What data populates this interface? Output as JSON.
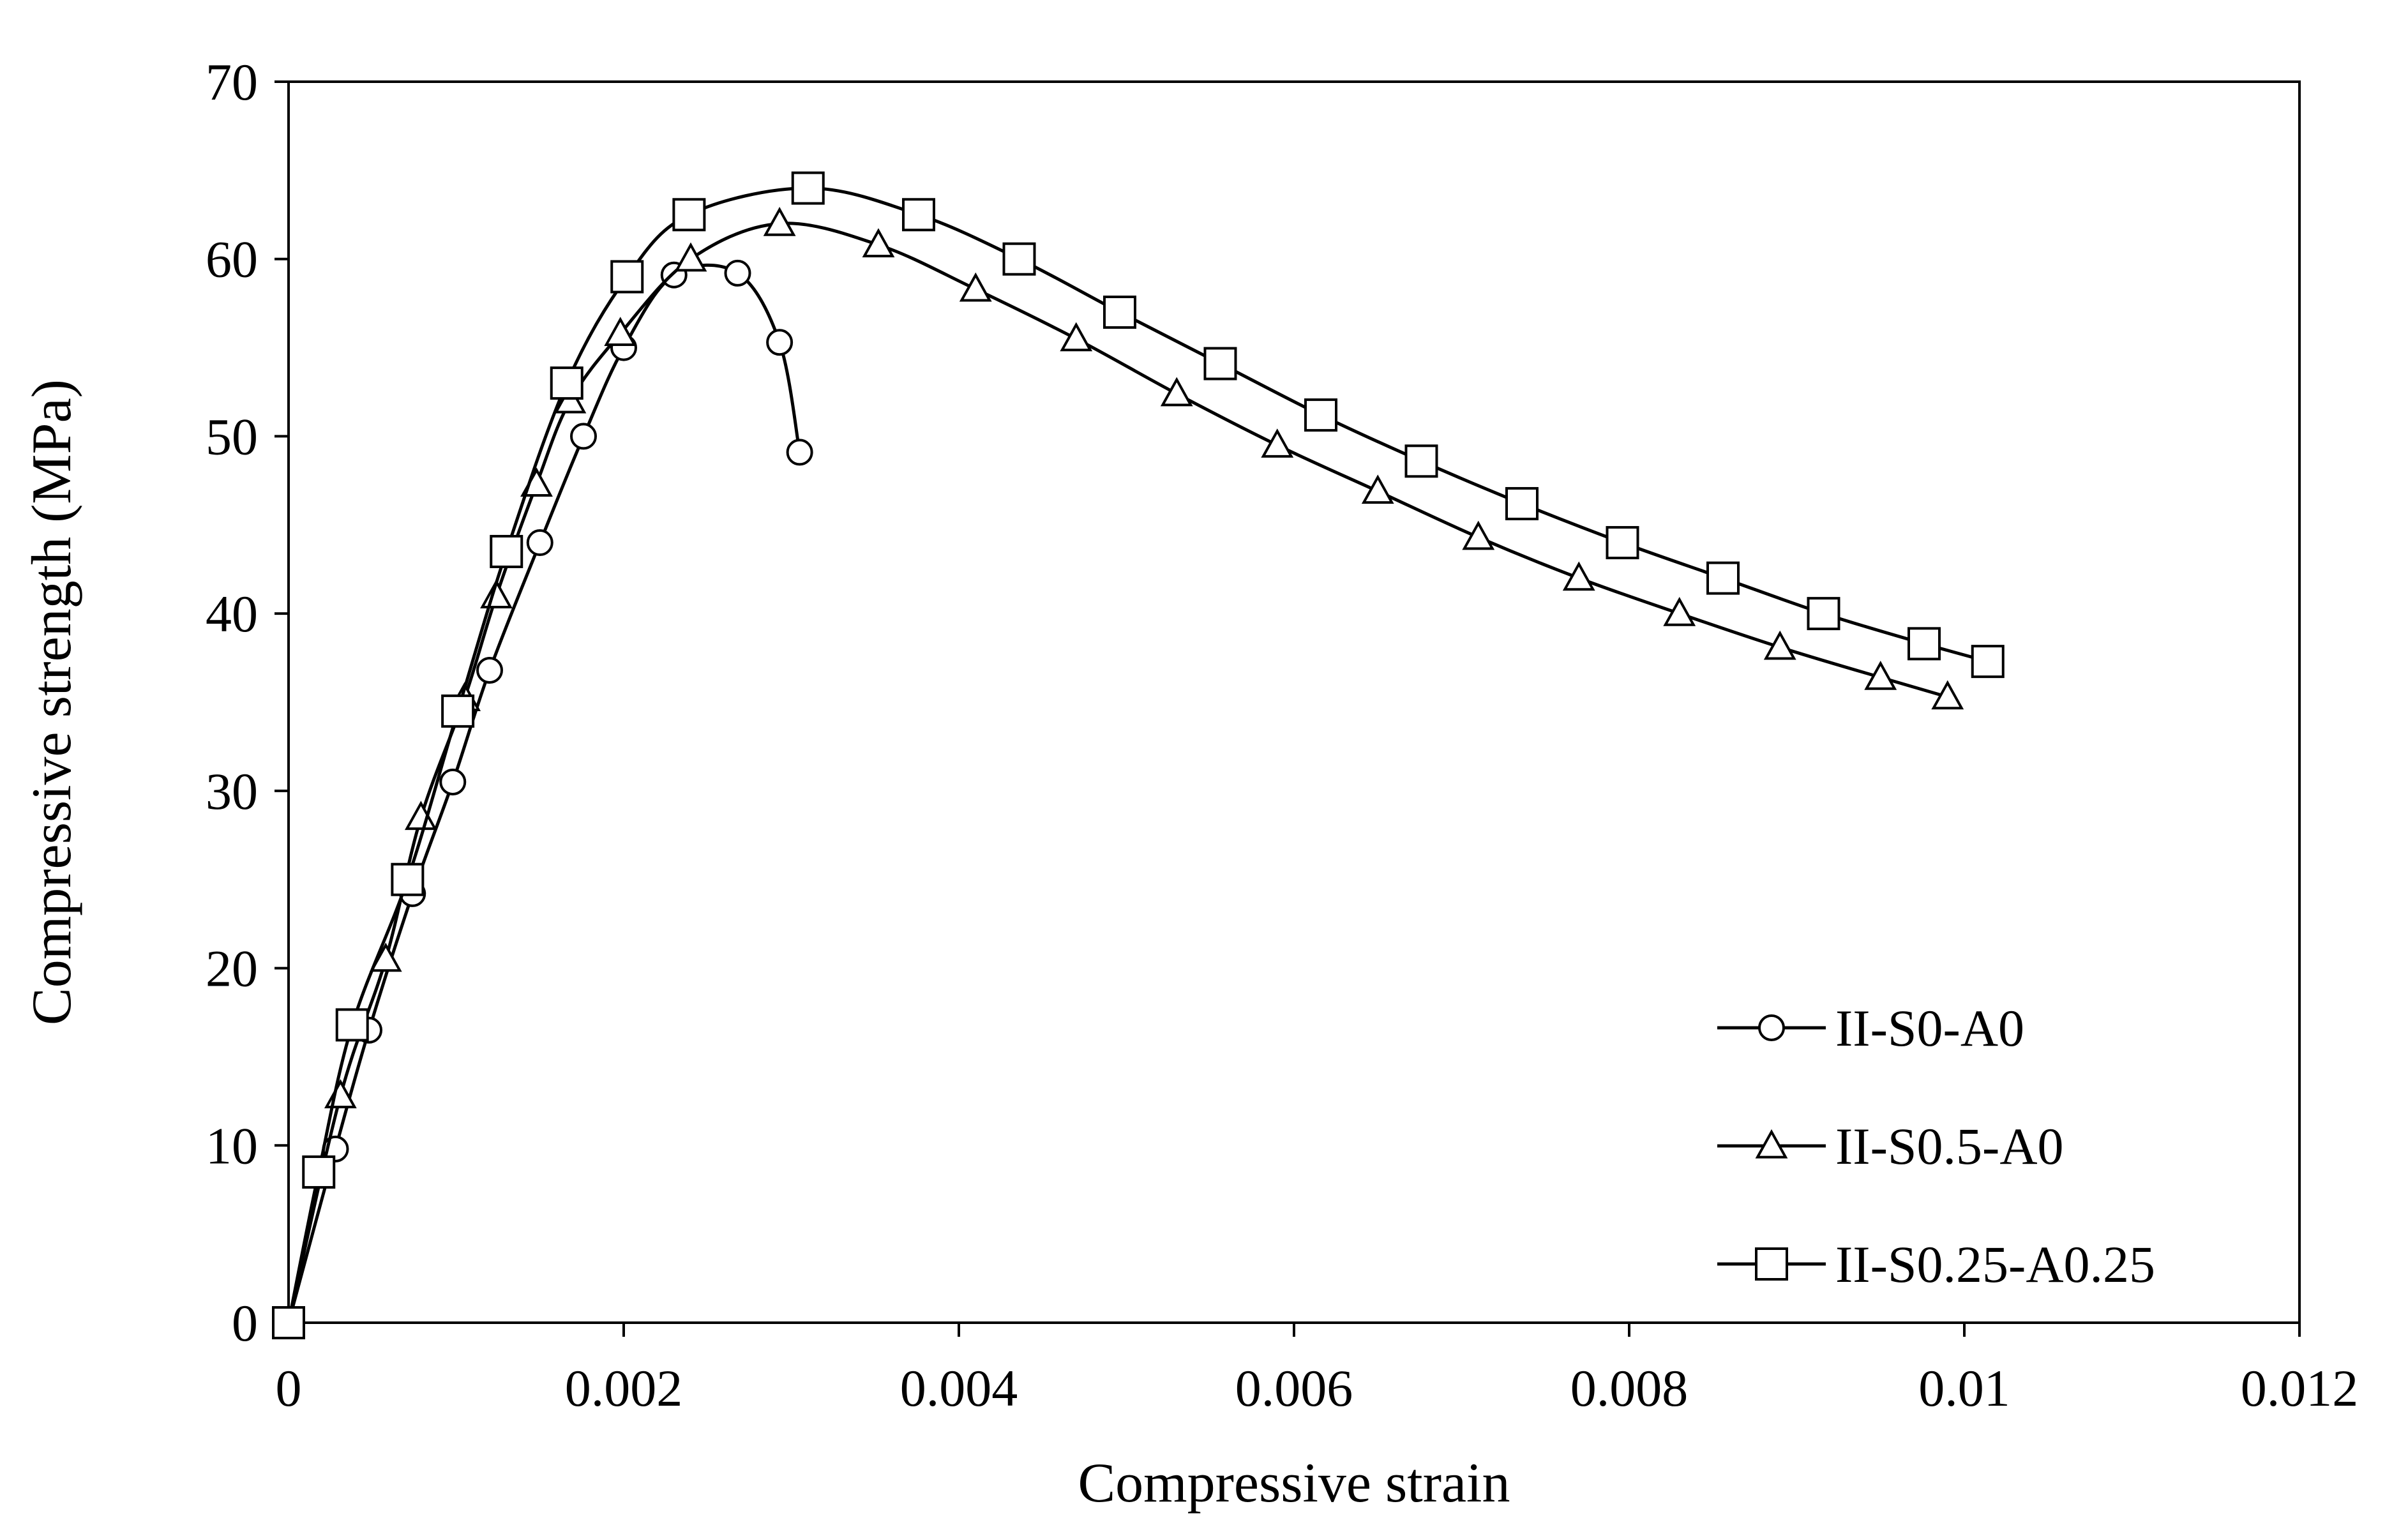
{
  "chart_data": {
    "type": "line",
    "title": "",
    "xlabel": "Compressive strain",
    "ylabel": "Compressive strength (MPa)",
    "xlim": [
      0,
      0.012
    ],
    "ylim": [
      0,
      70
    ],
    "xticks": [
      0,
      0.002,
      0.004,
      0.006,
      0.008,
      0.01,
      0.012
    ],
    "xtick_labels": [
      "0",
      "0.002",
      "0.004",
      "0.006",
      "0.008",
      "0.01",
      "0.012"
    ],
    "yticks": [
      0,
      10,
      20,
      30,
      40,
      50,
      60,
      70
    ],
    "ytick_labels": [
      "0",
      "10",
      "20",
      "30",
      "40",
      "50",
      "60",
      "70"
    ],
    "grid": false,
    "legend_position": "bottom-right",
    "series": [
      {
        "name": "II-S0-A0",
        "marker": "circle",
        "x": [
          0,
          0.00028,
          0.00048,
          0.00074,
          0.00098,
          0.0012,
          0.0015,
          0.00176,
          0.002,
          0.0023,
          0.00268,
          0.00293,
          0.00305
        ],
        "y": [
          0,
          9.8,
          16.5,
          24.2,
          30.5,
          36.8,
          44.0,
          50.0,
          55.0,
          59.1,
          59.2,
          55.3,
          49.1
        ]
      },
      {
        "name": "II-S0.5-A0",
        "marker": "triangle",
        "x": [
          0,
          0.00031,
          0.00058,
          0.00079,
          0.00105,
          0.00124,
          0.00148,
          0.00168,
          0.00198,
          0.0024,
          0.00293,
          0.00352,
          0.0041,
          0.0047,
          0.0053,
          0.0059,
          0.0065,
          0.0071,
          0.0077,
          0.0083,
          0.0089,
          0.0095,
          0.0099
        ],
        "y": [
          0,
          12.8,
          20.5,
          28.5,
          35.2,
          41.0,
          47.3,
          52.0,
          55.8,
          60.0,
          62.0,
          60.8,
          58.3,
          55.5,
          52.4,
          49.5,
          46.9,
          44.3,
          42.0,
          40.0,
          38.1,
          36.4,
          35.3
        ]
      },
      {
        "name": "II-S0.25-A0.25",
        "marker": "square",
        "x": [
          0,
          0.00018,
          0.00038,
          0.00071,
          0.00101,
          0.0013,
          0.00166,
          0.00202,
          0.00239,
          0.0031,
          0.00376,
          0.00436,
          0.00496,
          0.00556,
          0.00616,
          0.00676,
          0.00736,
          0.00796,
          0.00856,
          0.00916,
          0.00976,
          0.01014
        ],
        "y": [
          0,
          8.5,
          16.8,
          25.0,
          34.5,
          43.5,
          53.0,
          59.0,
          62.5,
          64.0,
          62.5,
          60.0,
          57.0,
          54.1,
          51.2,
          48.6,
          46.2,
          44.0,
          42.0,
          40.0,
          38.3,
          37.3
        ]
      }
    ]
  }
}
